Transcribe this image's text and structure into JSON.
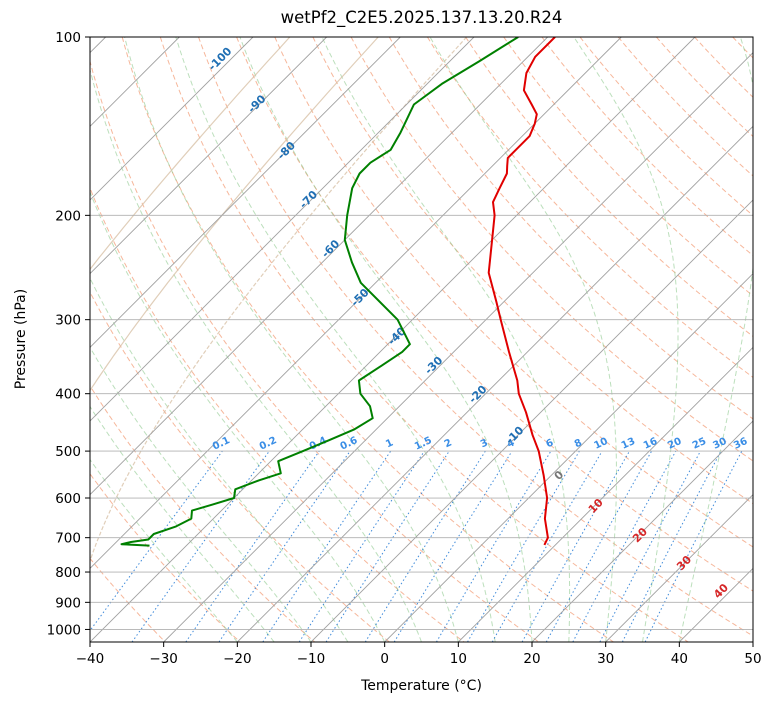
{
  "chart_data": {
    "type": "skew-t",
    "title": "wetPf2_C2E5.2025.137.13.20.R24",
    "xlabel": "Temperature (°C)",
    "ylabel": "Pressure (hPa)",
    "xlim": [
      -40,
      50
    ],
    "ylim": [
      1050,
      100
    ],
    "x_ticks": [
      -40,
      -30,
      -20,
      -10,
      0,
      10,
      20,
      30,
      40,
      50
    ],
    "y_ticks": [
      100,
      200,
      300,
      400,
      500,
      600,
      700,
      800,
      900,
      1000
    ],
    "grid": true,
    "series": [
      {
        "color": "#e00000",
        "points": [
          [
            100,
            -59
          ],
          [
            108,
            -59
          ],
          [
            115,
            -58
          ],
          [
            123,
            -56
          ],
          [
            130,
            -53
          ],
          [
            135,
            -51
          ],
          [
            140,
            -50
          ],
          [
            147,
            -49
          ],
          [
            150,
            -49
          ],
          [
            155,
            -49
          ],
          [
            160,
            -49
          ],
          [
            165,
            -48
          ],
          [
            170,
            -47
          ],
          [
            180,
            -46
          ],
          [
            190,
            -45
          ],
          [
            200,
            -43
          ],
          [
            220,
            -40
          ],
          [
            250,
            -36
          ],
          [
            280,
            -31
          ],
          [
            300,
            -28
          ],
          [
            340,
            -22.5
          ],
          [
            380,
            -17.5
          ],
          [
            400,
            -15.5
          ],
          [
            430,
            -12
          ],
          [
            470,
            -8
          ],
          [
            500,
            -5
          ],
          [
            550,
            -1
          ],
          [
            600,
            2.5
          ],
          [
            650,
            5
          ],
          [
            700,
            8
          ],
          [
            720,
            8.5
          ]
        ]
      },
      {
        "color": "#008000",
        "points": [
          [
            100,
            -64
          ],
          [
            110,
            -66
          ],
          [
            120,
            -68
          ],
          [
            130,
            -69
          ],
          [
            145,
            -67
          ],
          [
            155,
            -66
          ],
          [
            163,
            -67
          ],
          [
            170,
            -67
          ],
          [
            180,
            -66
          ],
          [
            200,
            -63
          ],
          [
            220,
            -60
          ],
          [
            240,
            -56
          ],
          [
            260,
            -52
          ],
          [
            300,
            -42
          ],
          [
            330,
            -37
          ],
          [
            340,
            -37
          ],
          [
            360,
            -38
          ],
          [
            380,
            -39
          ],
          [
            400,
            -37
          ],
          [
            420,
            -34
          ],
          [
            440,
            -32
          ],
          [
            460,
            -33
          ],
          [
            480,
            -35
          ],
          [
            500,
            -37
          ],
          [
            520,
            -39
          ],
          [
            545,
            -37
          ],
          [
            560,
            -39
          ],
          [
            580,
            -41
          ],
          [
            600,
            -40
          ],
          [
            615,
            -42
          ],
          [
            630,
            -44
          ],
          [
            650,
            -43
          ],
          [
            670,
            -44
          ],
          [
            690,
            -46
          ],
          [
            705,
            -46
          ],
          [
            712,
            -48
          ],
          [
            718,
            -49
          ],
          [
            722,
            -45
          ]
        ]
      }
    ],
    "background_lines": {
      "isotherms_step": 10,
      "dry_adiabats_label": [
        -100,
        -90,
        -80,
        -70,
        -60,
        -50,
        -40,
        -30,
        -20,
        -10,
        0,
        10,
        20,
        30,
        40
      ],
      "mixing_ratio_labels": [
        "0.1",
        "0.2",
        "0.4",
        "0.6",
        "1",
        "1.5",
        "2",
        "3",
        "4",
        "6",
        "8",
        "10",
        "13",
        "16",
        "20",
        "25",
        "30",
        "36"
      ],
      "mixing_ratio_values": [
        0.1,
        0.2,
        0.4,
        0.6,
        1,
        1.5,
        2,
        3,
        4,
        6,
        8,
        10,
        13,
        16,
        20,
        25,
        30,
        36
      ]
    }
  }
}
